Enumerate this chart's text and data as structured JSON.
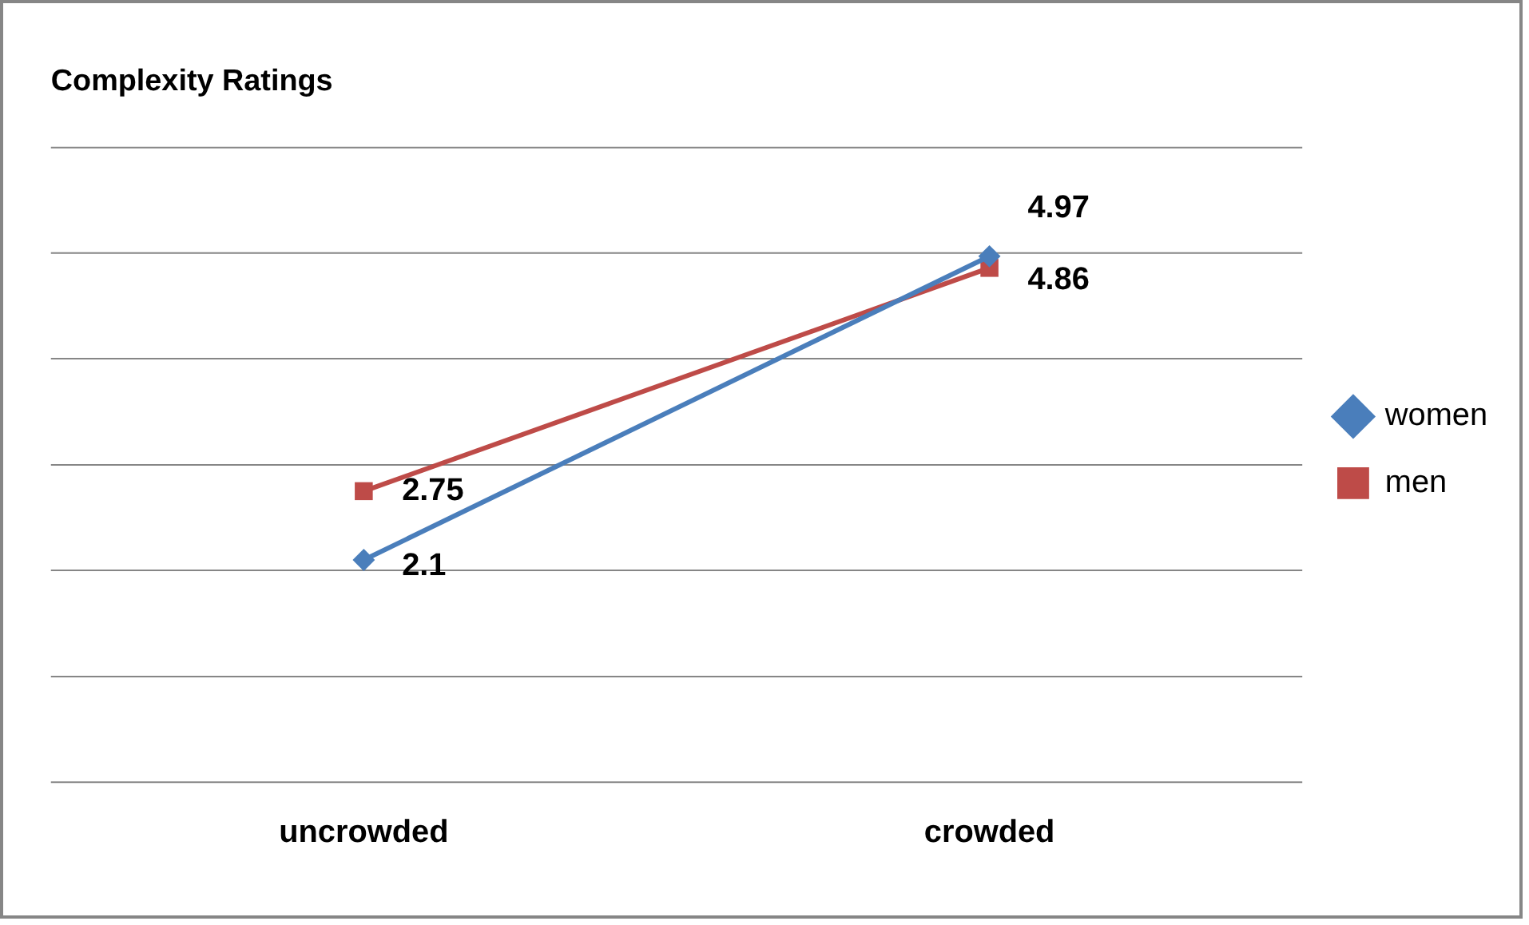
{
  "chart_data": {
    "type": "line",
    "title": "Complexity Ratings",
    "categories": [
      "uncrowded",
      "crowded"
    ],
    "series": [
      {
        "name": "women",
        "color": "#4a7ebb",
        "values": [
          2.1,
          4.97
        ],
        "marker": "diamond"
      },
      {
        "name": "men",
        "color": "#be4b48",
        "values": [
          2.75,
          4.86
        ],
        "marker": "square"
      }
    ],
    "ylim": [
      0,
      6
    ],
    "yticks": [
      {
        "value": 0,
        "label": null
      },
      {
        "value": 1,
        "label": null
      },
      {
        "value": 2,
        "label": null
      },
      {
        "value": 3,
        "label": null
      },
      {
        "value": 4,
        "label": null
      },
      {
        "value": 5,
        "label": null
      },
      {
        "value": 6,
        "label": null
      }
    ],
    "grid": "y",
    "legend": "right",
    "tick_labels": "x",
    "data_labels": true
  }
}
